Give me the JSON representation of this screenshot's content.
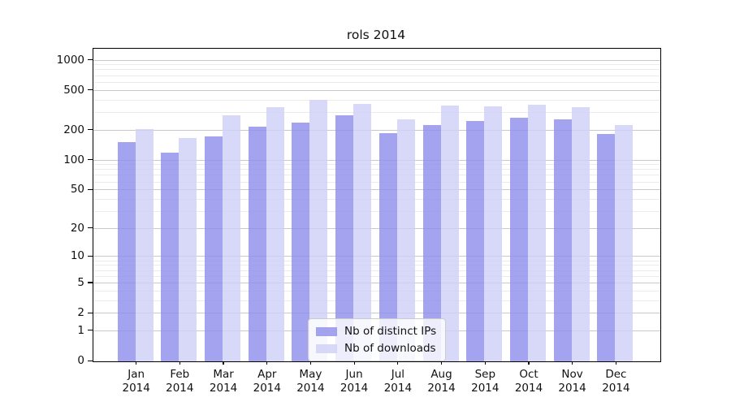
{
  "chart_data": {
    "type": "bar",
    "title": "rols 2014",
    "categories": [
      "Jan",
      "Feb",
      "Mar",
      "Apr",
      "May",
      "Jun",
      "Jul",
      "Aug",
      "Sep",
      "Oct",
      "Nov",
      "Dec"
    ],
    "category_year": "2014",
    "series": [
      {
        "name": "Nb of distinct IPs",
        "color": "rgba(143,143,236,0.82)",
        "values": [
          152,
          120,
          175,
          218,
          238,
          285,
          188,
          228,
          250,
          270,
          260,
          184
        ]
      },
      {
        "name": "Nb of downloads",
        "color": "rgba(208,208,247,0.82)",
        "values": [
          205,
          168,
          285,
          342,
          405,
          368,
          260,
          352,
          350,
          362,
          342,
          228
        ]
      }
    ],
    "yscale": "log1p",
    "ylim": [
      0,
      1310
    ],
    "y_ticks": [
      0,
      1,
      2,
      5,
      10,
      20,
      50,
      100,
      200,
      500,
      1000
    ],
    "y_minor_ticks": [
      3,
      4,
      6,
      7,
      8,
      9,
      30,
      40,
      60,
      70,
      80,
      90,
      300,
      400,
      600,
      700,
      800,
      900
    ],
    "grid": true,
    "legend_position": "lower center"
  },
  "colors": {
    "major_grid": "#c9c9c9",
    "minor_grid": "#ebebeb",
    "spine": "#000000"
  }
}
